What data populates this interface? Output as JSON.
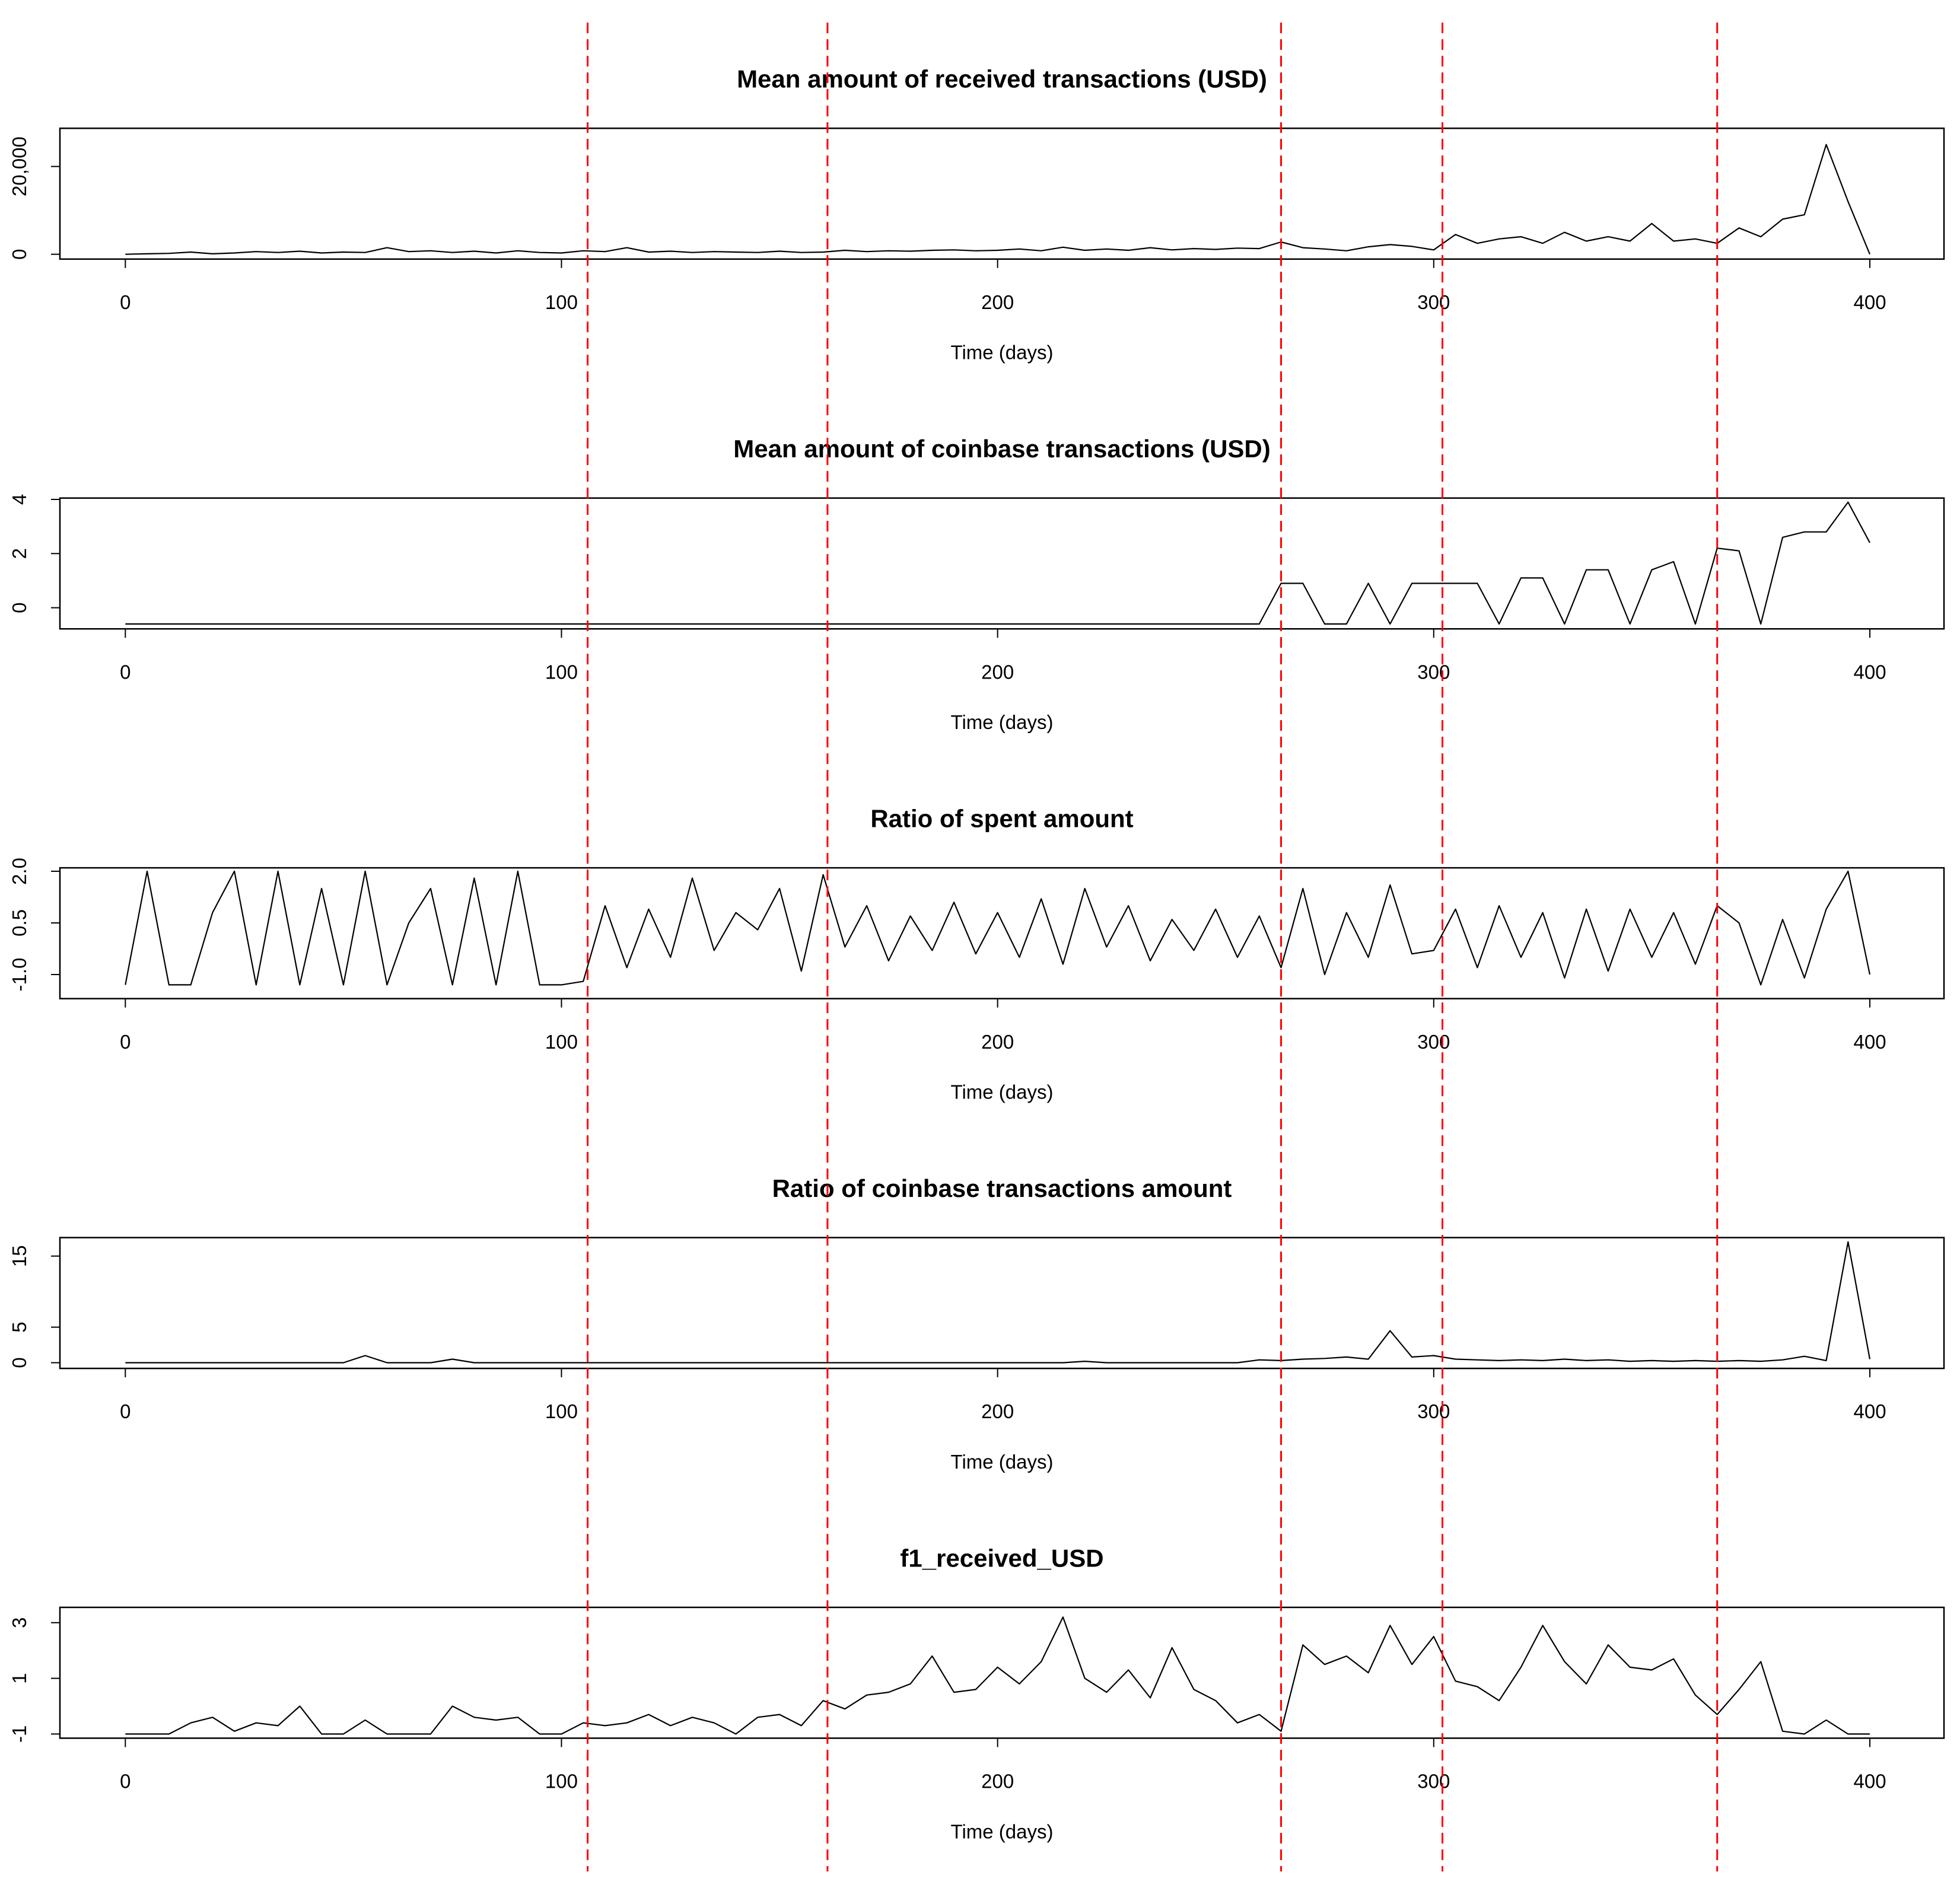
{
  "reference_lines": {
    "x": [
      106,
      161,
      265,
      302,
      365
    ],
    "color": "#ff0000",
    "style": "dashed"
  },
  "chart_data": [
    {
      "type": "line",
      "title": "Mean amount of received transactions (USD)",
      "xlabel": "Time (days)",
      "color": "#000000",
      "x": [
        0,
        5,
        10,
        15,
        20,
        25,
        30,
        35,
        40,
        45,
        50,
        55,
        60,
        65,
        70,
        75,
        80,
        85,
        90,
        95,
        100,
        105,
        110,
        115,
        120,
        125,
        130,
        135,
        140,
        145,
        150,
        155,
        160,
        165,
        170,
        175,
        180,
        185,
        190,
        195,
        200,
        205,
        210,
        215,
        220,
        225,
        230,
        235,
        240,
        245,
        250,
        255,
        260,
        265,
        270,
        275,
        280,
        285,
        290,
        295,
        300,
        305,
        310,
        315,
        320,
        325,
        330,
        335,
        340,
        345,
        350,
        355,
        360,
        365,
        370,
        375,
        380,
        385,
        390,
        395,
        400
      ],
      "values": [
        0,
        100,
        200,
        500,
        100,
        300,
        600,
        400,
        700,
        300,
        500,
        400,
        1500,
        600,
        800,
        400,
        700,
        300,
        800,
        400,
        300,
        800,
        600,
        1500,
        500,
        700,
        400,
        600,
        500,
        400,
        700,
        400,
        500,
        900,
        600,
        800,
        700,
        900,
        1000,
        800,
        900,
        1200,
        800,
        1600,
        900,
        1200,
        900,
        1500,
        1000,
        1300,
        1100,
        1400,
        1300,
        2800,
        1500,
        1200,
        800,
        1700,
        2200,
        1800,
        1000,
        4500,
        2500,
        3500,
        4000,
        2500,
        5000,
        3000,
        4000,
        3000,
        7000,
        3000,
        3500,
        2500,
        6000,
        4000,
        8000,
        9000,
        25000,
        12000,
        0
      ],
      "xlim": [
        -15,
        417
      ],
      "ylim": [
        -1100,
        28700
      ],
      "xticks": [
        0,
        100,
        200,
        300,
        400
      ],
      "yticks": [
        0,
        {
          "value": 20000,
          "label": "20,000"
        }
      ]
    },
    {
      "type": "line",
      "title": "Mean amount of coinbase transactions (USD)",
      "xlabel": "Time (days)",
      "color": "#000000",
      "x": [
        0,
        5,
        10,
        15,
        20,
        25,
        30,
        35,
        40,
        45,
        50,
        55,
        60,
        65,
        70,
        75,
        80,
        85,
        90,
        95,
        100,
        105,
        110,
        115,
        120,
        125,
        130,
        135,
        140,
        145,
        150,
        155,
        160,
        165,
        170,
        175,
        180,
        185,
        190,
        195,
        200,
        205,
        210,
        215,
        220,
        225,
        230,
        235,
        240,
        245,
        250,
        255,
        260,
        265,
        270,
        275,
        280,
        285,
        290,
        295,
        300,
        305,
        310,
        315,
        320,
        325,
        330,
        335,
        340,
        345,
        350,
        355,
        360,
        365,
        370,
        375,
        380,
        385,
        390,
        395,
        400
      ],
      "values": [
        -0.6,
        -0.6,
        -0.6,
        -0.6,
        -0.6,
        -0.6,
        -0.6,
        -0.6,
        -0.6,
        -0.6,
        -0.6,
        -0.6,
        -0.6,
        -0.6,
        -0.6,
        -0.6,
        -0.6,
        -0.6,
        -0.6,
        -0.6,
        -0.6,
        -0.6,
        -0.6,
        -0.6,
        -0.6,
        -0.6,
        -0.6,
        -0.6,
        -0.6,
        -0.6,
        -0.6,
        -0.6,
        -0.6,
        -0.6,
        -0.6,
        -0.6,
        -0.6,
        -0.6,
        -0.6,
        -0.6,
        -0.6,
        -0.6,
        -0.6,
        -0.6,
        -0.6,
        -0.6,
        -0.6,
        -0.6,
        -0.6,
        -0.6,
        -0.6,
        -0.6,
        -0.6,
        0.9,
        0.9,
        -0.6,
        -0.6,
        0.9,
        -0.6,
        0.9,
        0.9,
        0.9,
        0.9,
        -0.6,
        1.1,
        1.1,
        -0.6,
        1.4,
        1.4,
        -0.6,
        1.4,
        1.7,
        -0.6,
        2.2,
        2.1,
        -0.6,
        2.6,
        2.8,
        2.8,
        3.9,
        2.4
      ],
      "xlim": [
        -15,
        417
      ],
      "ylim": [
        -0.78,
        4.05
      ],
      "xticks": [
        0,
        100,
        200,
        300,
        400
      ],
      "yticks": [
        0,
        2,
        4
      ]
    },
    {
      "type": "line",
      "title": "Ratio of spent amount",
      "xlabel": "Time (days)",
      "color": "#000000",
      "x": [
        0,
        5,
        10,
        15,
        20,
        25,
        30,
        35,
        40,
        45,
        50,
        55,
        60,
        65,
        70,
        75,
        80,
        85,
        90,
        95,
        100,
        105,
        110,
        115,
        120,
        125,
        130,
        135,
        140,
        145,
        150,
        155,
        160,
        165,
        170,
        175,
        180,
        185,
        190,
        195,
        200,
        205,
        210,
        215,
        220,
        225,
        230,
        235,
        240,
        245,
        250,
        255,
        260,
        265,
        270,
        275,
        280,
        285,
        290,
        295,
        300,
        305,
        310,
        315,
        320,
        325,
        330,
        335,
        340,
        345,
        350,
        355,
        360,
        365,
        370,
        375,
        380,
        385,
        390,
        395,
        400
      ],
      "values": [
        -1.3,
        2.0,
        -1.3,
        -1.3,
        0.8,
        2.0,
        -1.3,
        2.0,
        -1.3,
        1.5,
        -1.3,
        2.0,
        -1.3,
        0.5,
        1.5,
        -1.3,
        1.8,
        -1.3,
        2.0,
        -1.3,
        -1.3,
        -1.2,
        1.0,
        -0.8,
        0.9,
        -0.5,
        1.8,
        -0.3,
        0.8,
        0.3,
        1.5,
        -0.9,
        1.9,
        -0.2,
        1.0,
        -0.6,
        0.7,
        -0.3,
        1.1,
        -0.4,
        0.8,
        -0.5,
        1.2,
        -0.7,
        1.5,
        -0.2,
        1.0,
        -0.6,
        0.6,
        -0.3,
        0.9,
        -0.5,
        0.7,
        -0.8,
        1.5,
        -1.0,
        0.8,
        -0.5,
        1.6,
        -0.4,
        -0.3,
        0.9,
        -0.8,
        1.0,
        -0.5,
        0.8,
        -1.1,
        0.9,
        -0.9,
        0.9,
        -0.5,
        0.8,
        -0.7,
        1.0,
        0.5,
        -1.3,
        0.6,
        -1.1,
        0.9,
        2.0,
        -1.0
      ],
      "xlim": [
        -15,
        417
      ],
      "ylim": [
        -1.7,
        2.1
      ],
      "xticks": [
        0,
        100,
        200,
        300,
        400
      ],
      "yticks": [
        {
          "value": -1,
          "label": "-1.0"
        },
        0.5,
        {
          "value": 2,
          "label": "2.0"
        }
      ]
    },
    {
      "type": "line",
      "title": "Ratio of coinbase transactions amount",
      "xlabel": "Time (days)",
      "color": "#000000",
      "x": [
        0,
        5,
        10,
        15,
        20,
        25,
        30,
        35,
        40,
        45,
        50,
        55,
        60,
        65,
        70,
        75,
        80,
        85,
        90,
        95,
        100,
        105,
        110,
        115,
        120,
        125,
        130,
        135,
        140,
        145,
        150,
        155,
        160,
        165,
        170,
        175,
        180,
        185,
        190,
        195,
        200,
        205,
        210,
        215,
        220,
        225,
        230,
        235,
        240,
        245,
        250,
        255,
        260,
        265,
        270,
        275,
        280,
        285,
        290,
        295,
        300,
        305,
        310,
        315,
        320,
        325,
        330,
        335,
        340,
        345,
        350,
        355,
        360,
        365,
        370,
        375,
        380,
        385,
        390,
        395,
        400
      ],
      "values": [
        0,
        0,
        0,
        0,
        0,
        0,
        0,
        0,
        0,
        0,
        0,
        1.0,
        0,
        0,
        0,
        0.5,
        0,
        0,
        0,
        0,
        0,
        0,
        0,
        0,
        0,
        0,
        0,
        0,
        0,
        0,
        0,
        0,
        0,
        0,
        0,
        0,
        0,
        0,
        0,
        0,
        0,
        0,
        0,
        0,
        0.2,
        0,
        0,
        0,
        0,
        0,
        0,
        0,
        0.4,
        0.3,
        0.5,
        0.6,
        0.8,
        0.5,
        4.5,
        0.8,
        1.0,
        0.5,
        0.4,
        0.3,
        0.4,
        0.3,
        0.5,
        0.3,
        0.4,
        0.2,
        0.3,
        0.2,
        0.3,
        0.2,
        0.3,
        0.2,
        0.4,
        0.9,
        0.3,
        17.0,
        0.5
      ],
      "xlim": [
        -15,
        417
      ],
      "ylim": [
        -0.8,
        17.6
      ],
      "xticks": [
        0,
        100,
        200,
        300,
        400
      ],
      "yticks": [
        0,
        5,
        15
      ]
    },
    {
      "type": "line",
      "title": "f1_received_USD",
      "xlabel": "Time (days)",
      "color": "#000000",
      "x": [
        0,
        5,
        10,
        15,
        20,
        25,
        30,
        35,
        40,
        45,
        50,
        55,
        60,
        65,
        70,
        75,
        80,
        85,
        90,
        95,
        100,
        105,
        110,
        115,
        120,
        125,
        130,
        135,
        140,
        145,
        150,
        155,
        160,
        165,
        170,
        175,
        180,
        185,
        190,
        195,
        200,
        205,
        210,
        215,
        220,
        225,
        230,
        235,
        240,
        245,
        250,
        255,
        260,
        265,
        270,
        275,
        280,
        285,
        290,
        295,
        300,
        305,
        310,
        315,
        320,
        325,
        330,
        335,
        340,
        345,
        350,
        355,
        360,
        365,
        370,
        375,
        380,
        385,
        390,
        395,
        400
      ],
      "values": [
        -1,
        -1,
        -1,
        -0.6,
        -0.4,
        -0.9,
        -0.6,
        -0.7,
        0,
        -1,
        -1,
        -0.5,
        -1,
        -1,
        -1,
        0,
        -0.4,
        -0.5,
        -0.4,
        -1,
        -1,
        -0.6,
        -0.7,
        -0.6,
        -0.3,
        -0.7,
        -0.4,
        -0.6,
        -1,
        -0.4,
        -0.3,
        -0.7,
        0.2,
        -0.1,
        0.4,
        0.5,
        0.8,
        1.8,
        0.5,
        0.6,
        1.4,
        0.8,
        1.6,
        3.2,
        1.0,
        0.5,
        1.3,
        0.3,
        2.1,
        0.6,
        0.2,
        -0.6,
        -0.3,
        -0.9,
        2.2,
        1.5,
        1.8,
        1.2,
        2.9,
        1.5,
        2.5,
        0.9,
        0.7,
        0.2,
        1.4,
        2.9,
        1.6,
        0.8,
        2.2,
        1.4,
        1.3,
        1.7,
        0.4,
        -0.3,
        0.6,
        1.6,
        -0.9,
        -1,
        -0.5,
        -1,
        -1
      ],
      "xlim": [
        -15,
        417
      ],
      "ylim": [
        -1.15,
        3.55
      ],
      "xticks": [
        0,
        100,
        200,
        300,
        400
      ],
      "yticks": [
        -1,
        1,
        3
      ]
    }
  ]
}
